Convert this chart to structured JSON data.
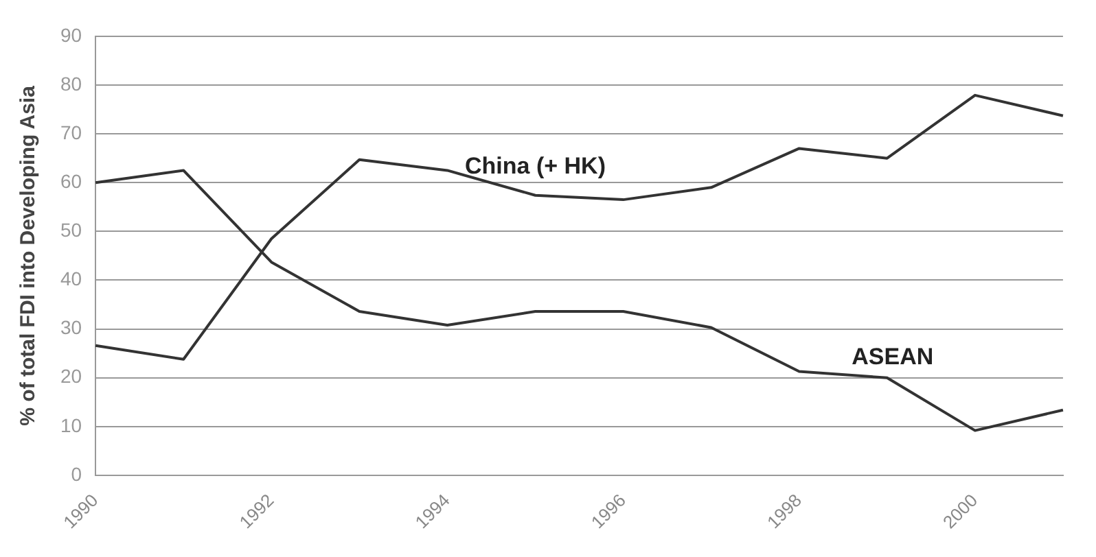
{
  "chart_data": {
    "type": "line",
    "ylabel": "% of total FDI into Developing Asia",
    "categories": [
      "1990",
      null,
      "1992",
      null,
      "1994",
      null,
      "1996",
      null,
      "1998",
      null,
      "2000",
      null
    ],
    "series": [
      {
        "name": "China (+ HK)",
        "color": "#333333",
        "values": [
          26.6,
          23.8,
          48.5,
          64.7,
          62.5,
          57.4,
          56.5,
          59,
          67,
          65,
          77.9,
          73.7
        ]
      },
      {
        "name": "ASEAN",
        "color": "#333333",
        "values": [
          60,
          62.5,
          43.7,
          33.6,
          30.8,
          33.6,
          33.6,
          30.3,
          21.3,
          20,
          9.2,
          13.4
        ]
      }
    ],
    "ylim": [
      0,
      90
    ],
    "yticks": [
      0,
      10,
      20,
      30,
      40,
      50,
      60,
      70,
      80,
      90
    ],
    "grid": "y",
    "legend": false,
    "marker": "none",
    "line_style": "solid"
  }
}
